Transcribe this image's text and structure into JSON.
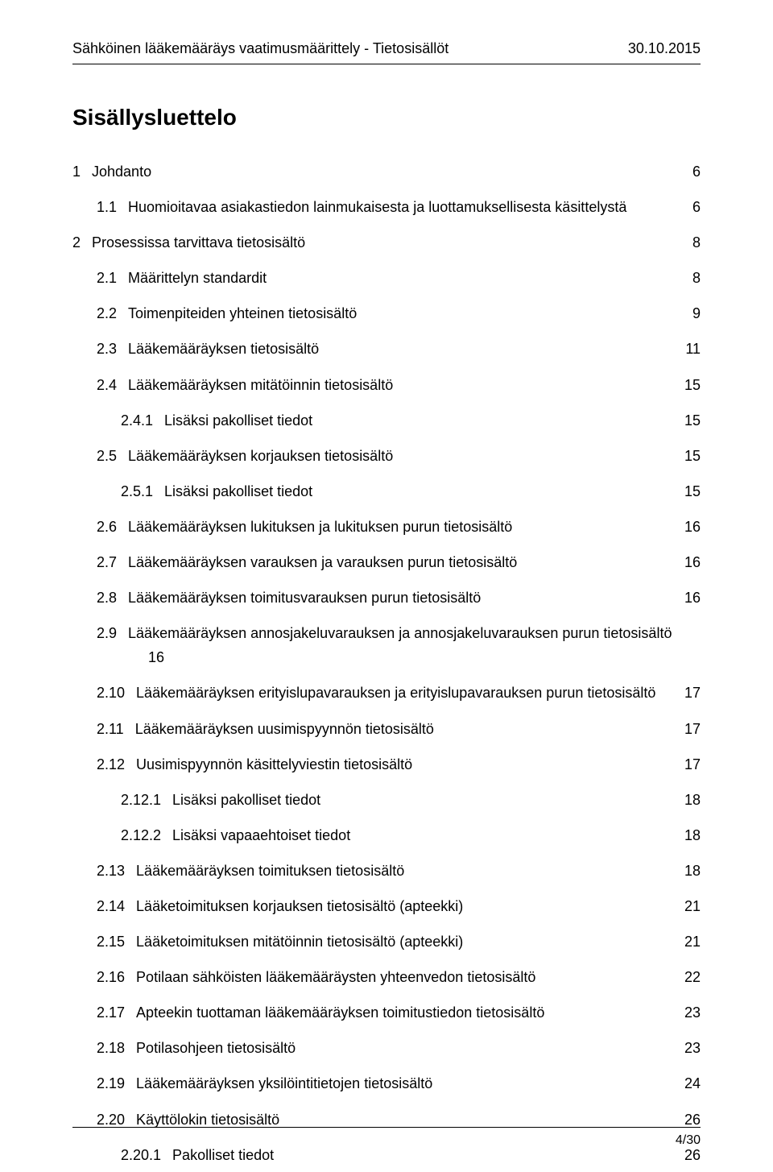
{
  "header": {
    "title": "Sähköinen lääkemääräys vaatimusmäärittely - Tietosisällöt",
    "date": "30.10.2015"
  },
  "heading": "Sisällysluettelo",
  "toc": [
    {
      "level": 1,
      "num": "1",
      "title": "Johdanto",
      "page": "6"
    },
    {
      "level": 2,
      "num": "1.1",
      "title": "Huomioitavaa asiakastiedon lainmukaisesta ja luottamuksellisesta käsittelystä",
      "page": "6"
    },
    {
      "level": 1,
      "num": "2",
      "title": "Prosessissa tarvittava tietosisältö",
      "page": "8"
    },
    {
      "level": 2,
      "num": "2.1",
      "title": "Määrittelyn standardit",
      "page": "8"
    },
    {
      "level": 2,
      "num": "2.2",
      "title": "Toimenpiteiden yhteinen tietosisältö",
      "page": "9"
    },
    {
      "level": 2,
      "num": "2.3",
      "title": "Lääkemääräyksen tietosisältö",
      "page": "11"
    },
    {
      "level": 2,
      "num": "2.4",
      "title": "Lääkemääräyksen mitätöinnin tietosisältö",
      "page": "15"
    },
    {
      "level": 3,
      "num": "2.4.1",
      "title": "Lisäksi pakolliset tiedot",
      "page": "15"
    },
    {
      "level": 2,
      "num": "2.5",
      "title": "Lääkemääräyksen korjauksen tietosisältö",
      "page": "15"
    },
    {
      "level": 3,
      "num": "2.5.1",
      "title": "Lisäksi pakolliset tiedot",
      "page": "15"
    },
    {
      "level": 2,
      "num": "2.6",
      "title": "Lääkemääräyksen lukituksen ja lukituksen purun tietosisältö",
      "page": "16"
    },
    {
      "level": 2,
      "num": "2.7",
      "title": "Lääkemääräyksen varauksen ja varauksen purun tietosisältö",
      "page": "16"
    },
    {
      "level": 2,
      "num": "2.8",
      "title": "Lääkemääräyksen toimitusvarauksen purun tietosisältö",
      "page": "16"
    },
    {
      "level": 2,
      "num": "2.9",
      "title": "Lääkemääräyksen annosjakeluvarauksen ja annosjakeluvarauksen purun tietosisältö",
      "page": "",
      "continuation": "16"
    },
    {
      "level": 2,
      "num": "2.10",
      "title": "Lääkemääräyksen erityislupavarauksen ja erityislupavarauksen purun tietosisältö",
      "page": "17"
    },
    {
      "level": 2,
      "num": "2.11",
      "title": "Lääkemääräyksen uusimispyynnön tietosisältö",
      "page": "17"
    },
    {
      "level": 2,
      "num": "2.12",
      "title": "Uusimispyynnön käsittelyviestin tietosisältö",
      "page": "17"
    },
    {
      "level": 3,
      "num": "2.12.1",
      "title": "Lisäksi pakolliset tiedot",
      "page": "18"
    },
    {
      "level": 3,
      "num": "2.12.2",
      "title": "Lisäksi vapaaehtoiset tiedot",
      "page": "18"
    },
    {
      "level": 2,
      "num": "2.13",
      "title": "Lääkemääräyksen toimituksen tietosisältö",
      "page": "18"
    },
    {
      "level": 2,
      "num": "2.14",
      "title": "Lääketoimituksen korjauksen tietosisältö (apteekki)",
      "page": "21"
    },
    {
      "level": 2,
      "num": "2.15",
      "title": "Lääketoimituksen mitätöinnin tietosisältö (apteekki)",
      "page": "21"
    },
    {
      "level": 2,
      "num": "2.16",
      "title": "Potilaan sähköisten lääkemääräysten yhteenvedon tietosisältö",
      "page": "22"
    },
    {
      "level": 2,
      "num": "2.17",
      "title": "Apteekin tuottaman lääkemääräyksen toimitustiedon tietosisältö",
      "page": "23"
    },
    {
      "level": 2,
      "num": "2.18",
      "title": "Potilasohjeen tietosisältö",
      "page": "23"
    },
    {
      "level": 2,
      "num": "2.19",
      "title": "Lääkemääräyksen yksilöintitietojen tietosisältö",
      "page": "24"
    },
    {
      "level": 2,
      "num": "2.20",
      "title": "Käyttölokin tietosisältö",
      "page": "26"
    },
    {
      "level": 3,
      "num": "2.20.1",
      "title": "Pakolliset tiedot",
      "page": "26"
    }
  ],
  "footer": {
    "page": "4/30"
  }
}
